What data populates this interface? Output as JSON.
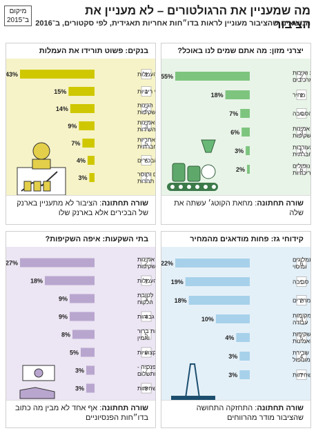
{
  "header": {
    "title": "מה שמעניין את הרגולטורים – לא מעניין את הציבור",
    "subtitle": "הנושאים שהציבור מעוניין לראות בדו״חות אחריות תאגידית, לפי סקטורים, ב־2016",
    "source_line1": "מיקום",
    "source_line2": "ב־2015"
  },
  "colors": {
    "food": "#7dc57f",
    "banks": "#cfc800",
    "gas": "#a7d1ea",
    "invest": "#b9a6cf",
    "food_bg": "#e9f4e8",
    "banks_bg": "#f6f3c8",
    "gas_bg": "#e4f0f8",
    "invest_bg": "#ece5f3"
  },
  "panels": {
    "food": {
      "sector": "יצרני מזון",
      "question": ": מה אתם שמים לנו באוכל?",
      "footer_label": "שורה תחתונה",
      "footer_text": ": מחאת הקוטג׳ עשתה את שלה",
      "icon": "food-factory-icon"
    },
    "banks": {
      "sector": "בנקים",
      "question": ": פשוט תורידו את העמלות",
      "footer_label": "שורה תחתונה",
      "footer_text": ": הציבור לא מתעניין בארנק של הבכירים אלא בארנק שלו",
      "icon": "banker-icon"
    },
    "gas": {
      "sector": "קידוחי גז",
      "question": ": פחות מודאגים מהמחיר",
      "footer_label": "שורה תחתונה",
      "footer_text": ": התחזקה התחושה שהציבור מודר מהרווחים",
      "icon": "drilling-rig-icon"
    },
    "invest": {
      "sector": "בתי השקעות",
      "question": ": איפה השקיפות?",
      "footer_label": "שורה תחתונה",
      "footer_text": ": אף אחד לא מבין מה כתוב בדו״חות הפנסיוניים",
      "icon": "money-hand-icon"
    }
  },
  "chart_data": [
    {
      "type": "bar",
      "id": "food",
      "title": "יצרני מזון: מה אתם שמים לנו באוכל?",
      "categories": [
        "בריאות ואיכות המרכיבים",
        "מחיר",
        "איכות הסביבה",
        "אמינות ושקיפות",
        "מעורבות חברתית",
        "מונופולים וריכוזיות"
      ],
      "values": [
        55,
        18,
        7,
        6,
        3,
        2
      ],
      "labels": [
        "55%",
        "18%",
        "7%",
        "6%",
        "3%",
        "2%"
      ],
      "rank_2015": [
        "2",
        "1",
        "4",
        "3",
        "5",
        "6"
      ],
      "xlim": [
        0,
        55
      ]
    },
    {
      "type": "bar",
      "id": "banks",
      "title": "בנקים: פשוט תורידו את העמלות",
      "categories": [
        "גובה העמלות",
        "תנאי ריביות",
        "הגינות ושקיפות",
        "איכות ואמינות השירות",
        "מעורבות ואחריות חברתית",
        "שכר הבכירים",
        "מונופולים וחוסר תחרות"
      ],
      "values": [
        43,
        15,
        14,
        9,
        7,
        4,
        3
      ],
      "labels": [
        "43%",
        "15%",
        "14%",
        "9%",
        "7%",
        "4%",
        "3%"
      ],
      "rank_2015": [
        "1",
        "4",
        "2",
        "3",
        "5",
        "6",
        "7"
      ],
      "xlim": [
        0,
        43
      ]
    },
    {
      "type": "bar",
      "id": "gas",
      "title": "קידוחי גז: פחות מודאגים מהמחיר",
      "categories": [
        "תמלוגים ומיסוי",
        "איכות סביבה",
        "הוזלת מחירים",
        "יצירת מקומות עבודה",
        "פיקוח שקיפות ואמינות",
        "שבירת המונופול",
        "שחיתות"
      ],
      "values": [
        22,
        19,
        18,
        10,
        4,
        3,
        3
      ],
      "labels": [
        "22%",
        "19%",
        "18%",
        "10%",
        "4%",
        "3%",
        "3%"
      ],
      "rank_2015": [
        "6",
        "1",
        "2",
        "3",
        "5",
        "4",
        "7"
      ],
      "xlim": [
        0,
        22
      ]
    },
    {
      "type": "bar",
      "id": "invest",
      "title": "בתי השקעות: איפה השקיפות?",
      "categories": [
        "אמינות ושקיפות",
        "גובה העמלות",
        "הצעות לטובת הלקוח",
        "תשואות גבוהות",
        "שירות ברור ואמין",
        "מקצועיות",
        "פנסיה - תנאים ותשלום",
        "שחיתות"
      ],
      "values": [
        27,
        18,
        9,
        9,
        8,
        5,
        3,
        3
      ],
      "labels": [
        "27%",
        "18%",
        "9%",
        "9%",
        "8%",
        "5%",
        "3%",
        "3%"
      ],
      "rank_2015": [
        "2",
        "1",
        "3",
        "4",
        "5",
        "6",
        "7",
        "8"
      ],
      "xlim": [
        0,
        27
      ]
    }
  ]
}
